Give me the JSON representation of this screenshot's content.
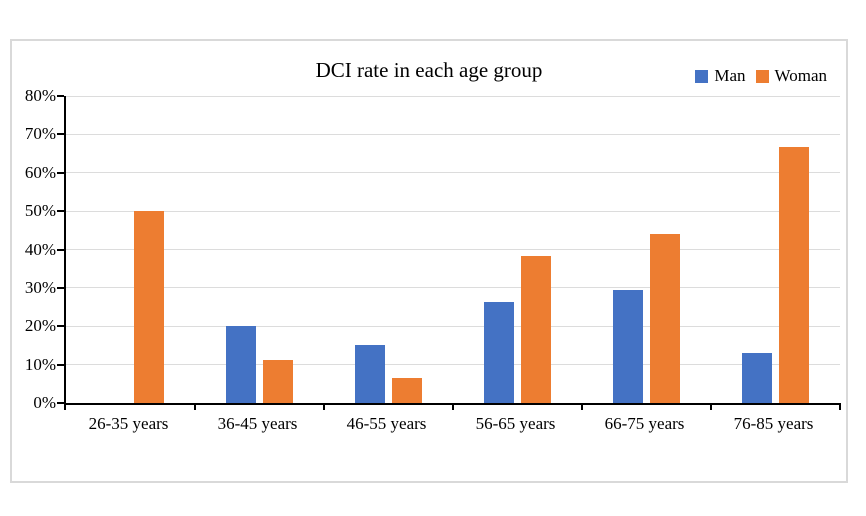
{
  "chart_data": {
    "type": "bar",
    "title": "DCI rate in each age group",
    "categories": [
      "26-35 years",
      "36-45 years",
      "46-55 years",
      "56-65 years",
      "66-75 years",
      "76-85 years"
    ],
    "series": [
      {
        "name": "Man",
        "color": "#4472C4",
        "values": [
          0,
          20,
          15.2,
          26.3,
          29.4,
          13
        ]
      },
      {
        "name": "Woman",
        "color": "#ED7D31",
        "values": [
          50,
          11.1,
          6.5,
          38.2,
          44.1,
          66.7
        ]
      }
    ],
    "xlabel": "",
    "ylabel": "",
    "ylim": [
      0,
      80
    ],
    "ytick_step": 10,
    "ytick_labels": [
      "0%",
      "10%",
      "20%",
      "30%",
      "40%",
      "50%",
      "60%",
      "70%",
      "80%"
    ],
    "grid": true,
    "legend_position": "top-right",
    "colors": {
      "gridline": "#DCDCDC",
      "axis": "#000000",
      "box_border": "#D9D9D9",
      "background": "#FFFFFF",
      "text": "#000000"
    }
  }
}
